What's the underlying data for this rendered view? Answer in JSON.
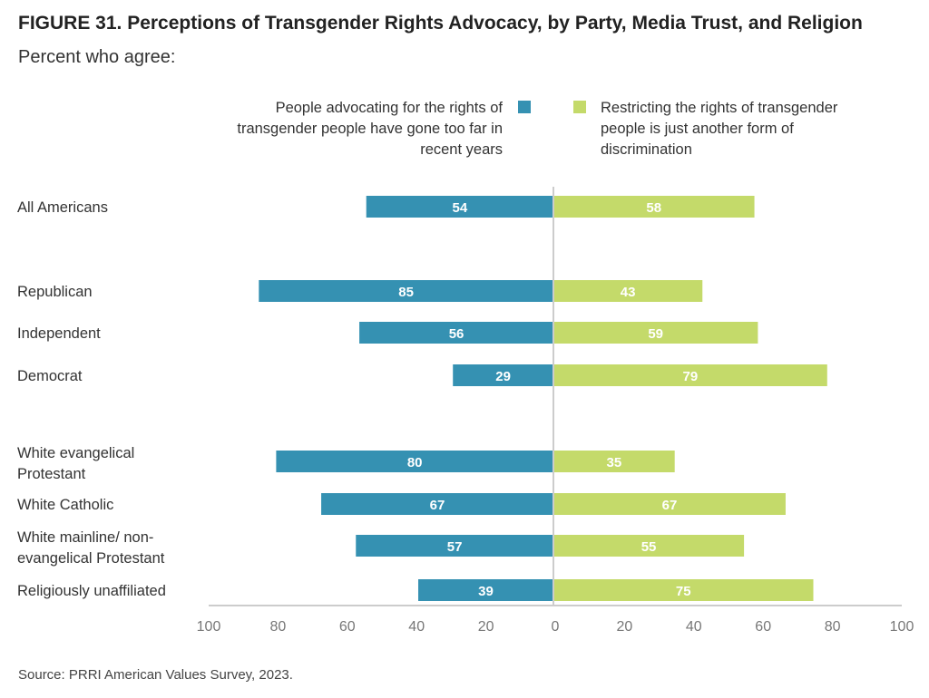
{
  "title": "FIGURE 31.  Perceptions of Transgender Rights Advocacy, by Party, Media Trust, and Religion",
  "subtitle": "Percent who agree:",
  "source": "Source: PRRI American Values Survey, 2023.",
  "colors": {
    "left_series": "#3591b2",
    "right_series": "#c4da6a",
    "axis": "#cccccc",
    "tick_text": "#777777",
    "label_text": "#333333"
  },
  "chart_data": {
    "type": "bar",
    "orientation": "horizontal-diverging",
    "categories": [
      [
        "All Americans"
      ],
      [
        "Republican"
      ],
      [
        "Independent"
      ],
      [
        "Democrat"
      ],
      [
        "White evangelical",
        "Protestant"
      ],
      [
        "White Catholic"
      ],
      [
        "White mainline/ non-",
        "evangelical Protestant"
      ],
      [
        "Religiously unaffiliated"
      ]
    ],
    "series": [
      {
        "name": "People advocating for the rights of transgender people have gone too far in recent years",
        "legend_lines": [
          "People advocating for the rights of",
          "transgender people have gone too far in",
          "recent years"
        ],
        "side": "left",
        "values": [
          54,
          85,
          56,
          29,
          80,
          67,
          57,
          39
        ]
      },
      {
        "name": "Restricting the rights of transgender people is just another form of discrimination",
        "legend_lines": [
          "Restricting the rights of transgender",
          "people is just another form of",
          "discrimination"
        ],
        "side": "right",
        "values": [
          58,
          43,
          59,
          79,
          35,
          67,
          55,
          75
        ]
      }
    ],
    "axis_ticks": [
      "100",
      "80",
      "60",
      "40",
      "20",
      "0",
      "20",
      "40",
      "60",
      "80",
      "100"
    ],
    "xlim": [
      -100,
      100
    ],
    "grid": false,
    "legend_position": "top"
  }
}
